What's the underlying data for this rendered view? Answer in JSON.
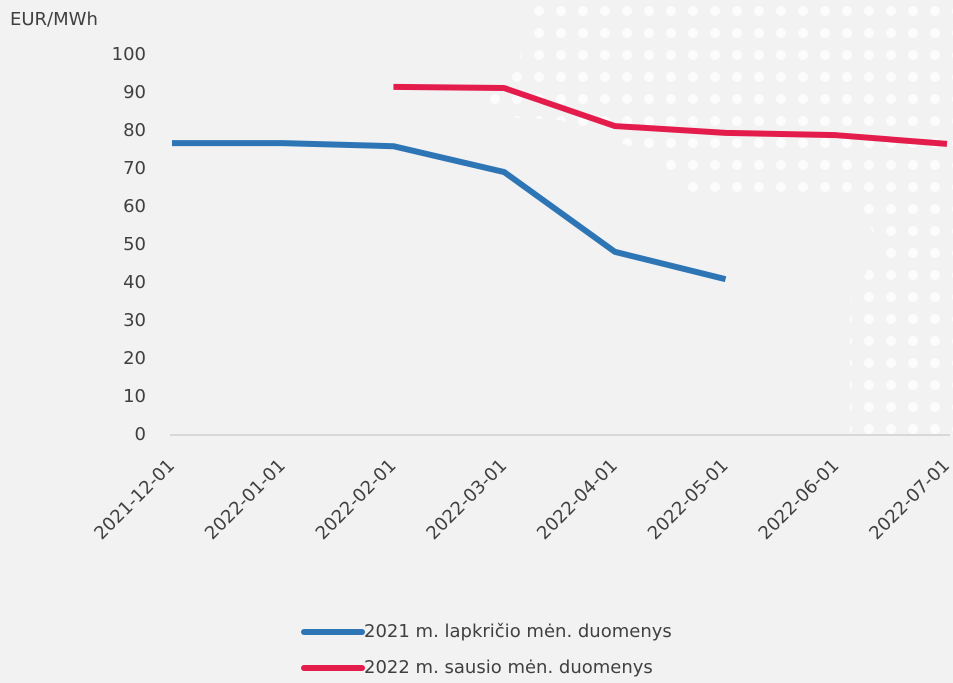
{
  "chart_data": {
    "type": "line",
    "y_label": "EUR/MWh",
    "categories": [
      "2021-12-01",
      "2022-01-01",
      "2022-02-01",
      "2022-03-01",
      "2022-04-01",
      "2022-05-01",
      "2022-06-01",
      "2022-07-01"
    ],
    "series": [
      {
        "name": "2021 m. lapkričio mėn. duomenys",
        "color": "#2e75b6",
        "values": [
          76.8,
          76.8,
          76,
          69.2,
          48.2,
          41,
          null,
          null
        ]
      },
      {
        "name": "2022 m. sausio mėn. duomenys",
        "color": "#e31c4c",
        "values": [
          null,
          null,
          91.6,
          91.3,
          81.3,
          79.5,
          78.9,
          76.6
        ]
      }
    ],
    "ylim": [
      0,
      100
    ],
    "yticks": [
      0,
      10,
      20,
      30,
      40,
      50,
      60,
      70,
      80,
      90,
      100
    ],
    "grid": false,
    "legend": "bottom"
  }
}
